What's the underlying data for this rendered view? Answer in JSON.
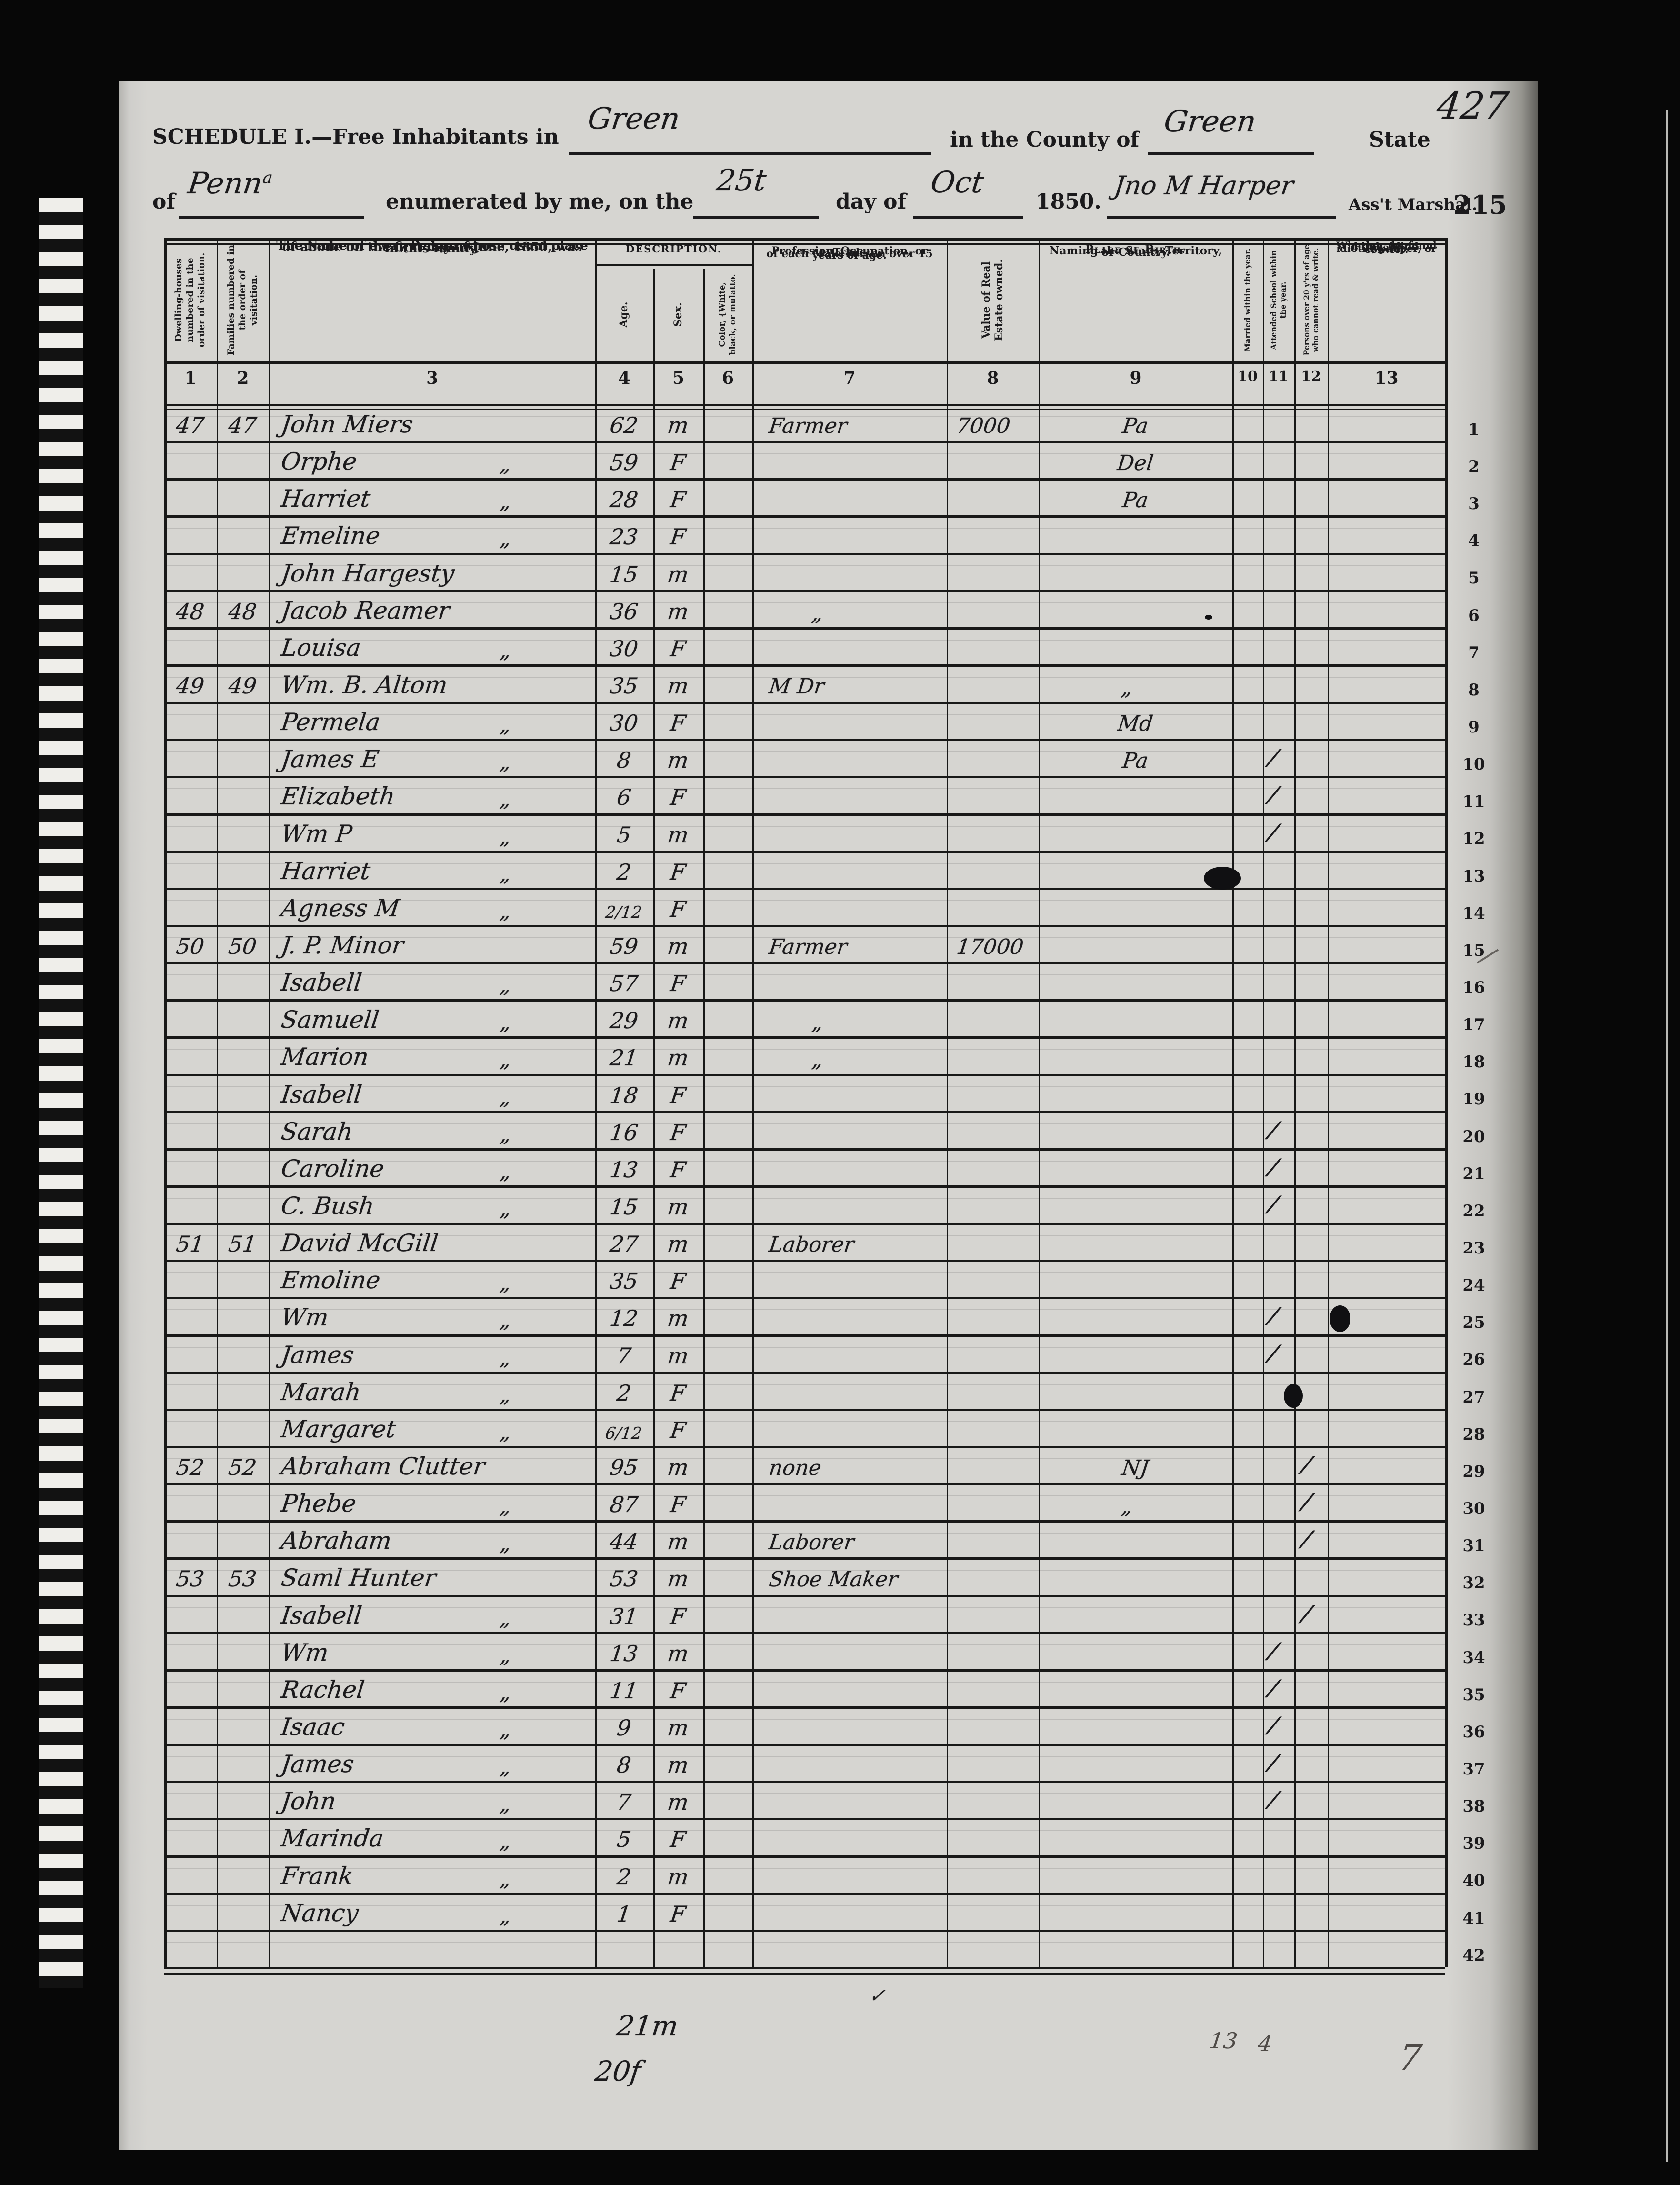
{
  "colors": {
    "ink": "#1b1a1c",
    "pencil": "#4e4a46",
    "paper": "#d6d5d1",
    "line": "#181817"
  },
  "header": {
    "schedule_label": "SCHEDULE I.—Free Inhabitants in",
    "district": "Green",
    "county_label": "in the County of",
    "county": "Green",
    "state_label": "State",
    "folio": "427",
    "of_label": "of",
    "state_hw": "Penn",
    "state_hw_sup": "a",
    "enumerated_label": "enumerated by me, on the",
    "day_hw": "25t",
    "day_label": "day of",
    "month_hw": "Oct",
    "year_label": "1850.",
    "marshal_hw": "Jno M Harper",
    "marshal_label": "Ass't Marshal.",
    "page_number": "215"
  },
  "table": {
    "description_label": "DESCRIPTION.",
    "columns": [
      {
        "num": "1",
        "label": "Dwelling-houses numbered in the order of visitation."
      },
      {
        "num": "2",
        "label": "Families numbered in the order of visitation."
      },
      {
        "num": "3",
        "lines": [
          "The Name of every Person whose usual place",
          "of abode on the first day of June, 1850, was",
          "in this family."
        ]
      },
      {
        "num": "4",
        "label": "Age."
      },
      {
        "num": "5",
        "label": "Sex."
      },
      {
        "num": "6",
        "label": "Color, {White, black, or mulatto."
      },
      {
        "num": "7",
        "lines": [
          "Profession, Occupation, or Trade",
          "of each Male Person over 15",
          "years of age."
        ]
      },
      {
        "num": "8",
        "label": "Value of Real Estate owned."
      },
      {
        "num": "9",
        "lines": [
          "Place of Birth.",
          "Naming the State, Territory,",
          "or Country."
        ]
      },
      {
        "num": "10",
        "label": "Married within the year."
      },
      {
        "num": "11",
        "label": "Attended School within the year."
      },
      {
        "num": "12",
        "label": "Persons over 20 y'rs of age who cannot read & write."
      },
      {
        "num": "13",
        "lines": [
          "Whether deaf and",
          "dumb, blind, insane,",
          "idiotic, pauper, or",
          "convict."
        ]
      }
    ],
    "rows": [
      {
        "n": 1,
        "dw": "47",
        "fm": "47",
        "nm": "John Miers",
        "ag": "62",
        "sx": "m",
        "oc": "Farmer",
        "vl": "7000",
        "bp": "Pa"
      },
      {
        "n": 2,
        "nm": "Orphe",
        "nd": true,
        "ag": "59",
        "sx": "F",
        "bp": "Del"
      },
      {
        "n": 3,
        "nm": "Harriet",
        "nd": true,
        "ag": "28",
        "sx": "F",
        "bp": "Pa"
      },
      {
        "n": 4,
        "nm": "Emeline",
        "nd": true,
        "ag": "23",
        "sx": "F"
      },
      {
        "n": 5,
        "nm": "John Hargesty",
        "ag": "15",
        "sx": "m"
      },
      {
        "n": 6,
        "dw": "48",
        "fm": "48",
        "nm": "Jacob Reamer",
        "ag": "36",
        "sx": "m",
        "od": true,
        "bl": [
          "d9"
        ]
      },
      {
        "n": 7,
        "nm": "Louisa",
        "nd": true,
        "ag": "30",
        "sx": "F"
      },
      {
        "n": 8,
        "dw": "49",
        "fm": "49",
        "nm": "Wm. B. Altom",
        "ag": "35",
        "sx": "m",
        "oc": "M Dr",
        "bd": true
      },
      {
        "n": 9,
        "nm": "Permela",
        "nd": true,
        "ag": "30",
        "sx": "F",
        "bp": "Md"
      },
      {
        "n": 10,
        "nm": "James E",
        "nd": true,
        "ag": "8",
        "sx": "m",
        "bp": "Pa",
        "s11": true
      },
      {
        "n": 11,
        "nm": "Elizabeth",
        "nd": true,
        "ag": "6",
        "sx": "F",
        "s11": true
      },
      {
        "n": 12,
        "nm": "Wm P",
        "nd": true,
        "ag": "5",
        "sx": "m",
        "s11": true
      },
      {
        "n": 13,
        "nm": "Harriet",
        "nd": true,
        "ag": "2",
        "sx": "F",
        "bl": [
          "b9"
        ]
      },
      {
        "n": 14,
        "nm": "Agness M",
        "nd": true,
        "ag": "2/12",
        "sx": "F"
      },
      {
        "n": 15,
        "dw": "50",
        "fm": "50",
        "nm": "J. P. Minor",
        "ag": "59",
        "sx": "m",
        "oc": "Farmer",
        "vl": "17000"
      },
      {
        "n": 16,
        "nm": "Isabell",
        "nd": true,
        "ag": "57",
        "sx": "F"
      },
      {
        "n": 17,
        "nm": "Samuell",
        "nd": true,
        "ag": "29",
        "sx": "m",
        "od": true
      },
      {
        "n": 18,
        "nm": "Marion",
        "nd": true,
        "ag": "21",
        "sx": "m",
        "od": true
      },
      {
        "n": 19,
        "nm": "Isabell",
        "nd": true,
        "ag": "18",
        "sx": "F"
      },
      {
        "n": 20,
        "nm": "Sarah",
        "nd": true,
        "ag": "16",
        "sx": "F",
        "s11": true
      },
      {
        "n": 21,
        "nm": "Caroline",
        "nd": true,
        "ag": "13",
        "sx": "F",
        "s11": true
      },
      {
        "n": 22,
        "nm": "C. Bush",
        "nd": true,
        "ag": "15",
        "sx": "m",
        "s11": true
      },
      {
        "n": 23,
        "dw": "51",
        "fm": "51",
        "nm": "David McGill",
        "ag": "27",
        "sx": "m",
        "oc": "Laborer"
      },
      {
        "n": 24,
        "nm": "Emoline",
        "nd": true,
        "ag": "35",
        "sx": "F"
      },
      {
        "n": 25,
        "nm": "Wm",
        "nd": true,
        "ag": "12",
        "sx": "m",
        "s11": true,
        "bl": [
          "c12"
        ]
      },
      {
        "n": 26,
        "nm": "James",
        "nd": true,
        "ag": "7",
        "sx": "m",
        "s11": true
      },
      {
        "n": 27,
        "nm": "Marah",
        "nd": true,
        "ag": "2",
        "sx": "F",
        "bl": [
          "c11"
        ]
      },
      {
        "n": 28,
        "nm": "Margaret",
        "nd": true,
        "ag": "6/12",
        "sx": "F"
      },
      {
        "n": 29,
        "dw": "52",
        "fm": "52",
        "nm": "Abraham Clutter",
        "ag": "95",
        "sx": "m",
        "oc": "none",
        "bp": "NJ",
        "s12": true
      },
      {
        "n": 30,
        "nm": "Phebe",
        "nd": true,
        "ag": "87",
        "sx": "F",
        "bd": true,
        "s12": true
      },
      {
        "n": 31,
        "nm": "Abraham",
        "nd": true,
        "ag": "44",
        "sx": "m",
        "oc": "Laborer",
        "s12": true
      },
      {
        "n": 32,
        "dw": "53",
        "fm": "53",
        "nm": "Saml Hunter",
        "ag": "53",
        "sx": "m",
        "oc": "Shoe Maker"
      },
      {
        "n": 33,
        "nm": "Isabell",
        "nd": true,
        "ag": "31",
        "sx": "F",
        "s12": true
      },
      {
        "n": 34,
        "nm": "Wm",
        "nd": true,
        "ag": "13",
        "sx": "m",
        "s11": true
      },
      {
        "n": 35,
        "nm": "Rachel",
        "nd": true,
        "ag": "11",
        "sx": "F",
        "s11": true
      },
      {
        "n": 36,
        "nm": "Isaac",
        "nd": true,
        "ag": "9",
        "sx": "m",
        "s11": true
      },
      {
        "n": 37,
        "nm": "James",
        "nd": true,
        "ag": "8",
        "sx": "m",
        "s11": true
      },
      {
        "n": 38,
        "nm": "John",
        "nd": true,
        "ag": "7",
        "sx": "m",
        "s11": true
      },
      {
        "n": 39,
        "nm": "Marinda",
        "nd": true,
        "ag": "5",
        "sx": "F"
      },
      {
        "n": 40,
        "nm": "Frank",
        "nd": true,
        "ag": "2",
        "sx": "m"
      },
      {
        "n": 41,
        "nm": "Nancy",
        "nd": true,
        "ag": "1",
        "sx": "F"
      },
      {
        "n": 42
      }
    ]
  },
  "margin": {
    "row_numbers": [
      1,
      2,
      3,
      4,
      5,
      6,
      7,
      8,
      9,
      10,
      11,
      12,
      13,
      14,
      15,
      16,
      17,
      18,
      19,
      20,
      21,
      22,
      23,
      24,
      25,
      26,
      27,
      28,
      29,
      30,
      31,
      32,
      33,
      34,
      35,
      36,
      37,
      38,
      39,
      40,
      41,
      42
    ]
  },
  "annotations": {
    "male_tally": "21m",
    "female_tally": "20f",
    "check_mark": "✓",
    "school_tally": "13",
    "read_tally": "4",
    "corner_tally": "7"
  }
}
